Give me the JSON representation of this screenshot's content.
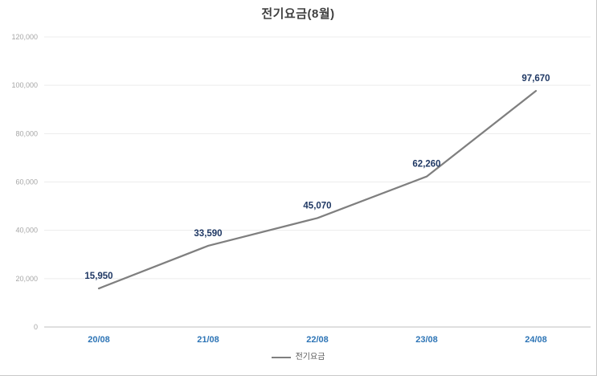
{
  "chart_data": {
    "type": "line",
    "title": "전기요금(8월)",
    "categories": [
      "20/08",
      "21/08",
      "22/08",
      "23/08",
      "24/08"
    ],
    "series": [
      {
        "name": "전기요금",
        "values": [
          15950,
          33590,
          45070,
          62260,
          97670
        ]
      }
    ],
    "ylim": [
      0,
      120000
    ],
    "ytick_step": 20000,
    "ytick_labels": [
      "0",
      "20,000",
      "40,000",
      "60,000",
      "80,000",
      "100,000",
      "120,000"
    ],
    "grid": true,
    "legend_position": "bottom",
    "colors": {
      "line": "#7f7f7f",
      "data_label": "#1f3864",
      "x_label": "#2e75b6",
      "y_label": "#a6a6a6",
      "gridline": "#ececec",
      "axis": "#bfbfbf",
      "title": "#404040",
      "legend_text": "#595959"
    }
  }
}
